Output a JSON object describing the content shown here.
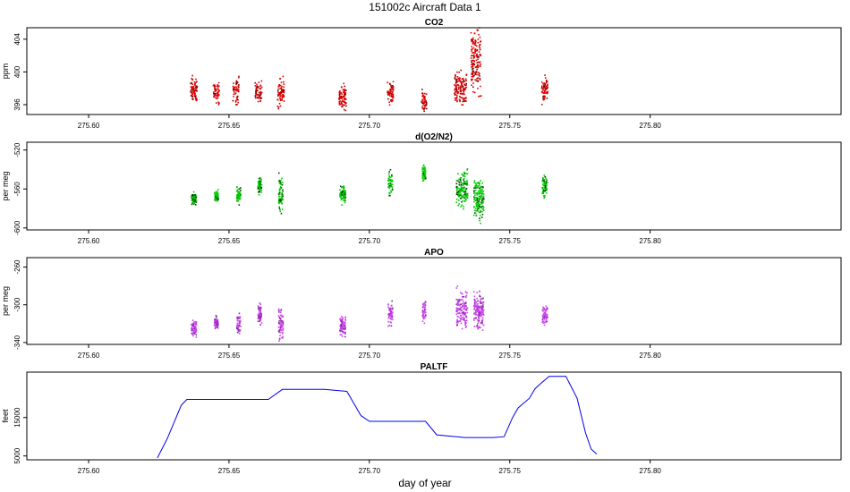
{
  "title": "151002c   Aircraft Data 1",
  "xlabel": "day of year",
  "chart_data": [
    {
      "type": "scatter",
      "title": "CO2",
      "ylabel": "ppm",
      "color": "#e00000",
      "xlim": [
        275.578,
        275.868
      ],
      "ylim": [
        394.8,
        405.4
      ],
      "x_ticks": [
        "275.60",
        "275.65",
        "275.70",
        "275.75",
        "275.80"
      ],
      "y_ticks": [
        "396",
        "400",
        "404"
      ],
      "clusters": [
        {
          "x": 275.6375,
          "y": 397.8
        },
        {
          "x": 275.6455,
          "y": 397.5
        },
        {
          "x": 275.6525,
          "y": 397.8
        },
        {
          "x": 275.6605,
          "y": 397.5
        },
        {
          "x": 275.6685,
          "y": 397.5
        },
        {
          "x": 275.6905,
          "y": 396.9
        },
        {
          "x": 275.7075,
          "y": 397.3
        },
        {
          "x": 275.7195,
          "y": 396.3
        },
        {
          "x": 275.7325,
          "y": 398.0
        },
        {
          "x": 275.738,
          "y": 401.5
        },
        {
          "x": 275.7625,
          "y": 397.8
        }
      ]
    },
    {
      "type": "scatter",
      "title": "d(O2/N2)",
      "ylabel": "per meg",
      "color": "#00cc00",
      "xlim": [
        275.578,
        275.868
      ],
      "ylim": [
        -602,
        -512
      ],
      "x_ticks": [
        "275.60",
        "275.65",
        "275.70",
        "275.75",
        "275.80"
      ],
      "y_ticks": [
        "-600",
        "-560",
        "-520"
      ],
      "clusters": [
        {
          "x": 275.6375,
          "y": -570
        },
        {
          "x": 275.6455,
          "y": -568
        },
        {
          "x": 275.6535,
          "y": -566
        },
        {
          "x": 275.661,
          "y": -556
        },
        {
          "x": 275.6685,
          "y": -567
        },
        {
          "x": 275.6905,
          "y": -565
        },
        {
          "x": 275.7075,
          "y": -556
        },
        {
          "x": 275.7195,
          "y": -544
        },
        {
          "x": 275.733,
          "y": -560
        },
        {
          "x": 275.739,
          "y": -570
        },
        {
          "x": 275.7625,
          "y": -557
        }
      ]
    },
    {
      "type": "scatter",
      "title": "APO",
      "ylabel": "per meg",
      "color": "#cc44ee",
      "xlim": [
        275.578,
        275.868
      ],
      "ylim": [
        -342,
        -250
      ],
      "x_ticks": [
        "275.60",
        "275.65",
        "275.70",
        "275.75",
        "275.80"
      ],
      "y_ticks": [
        "-340",
        "-300",
        "-260"
      ],
      "clusters": [
        {
          "x": 275.6375,
          "y": -325
        },
        {
          "x": 275.6455,
          "y": -320
        },
        {
          "x": 275.6535,
          "y": -320
        },
        {
          "x": 275.661,
          "y": -310
        },
        {
          "x": 275.6685,
          "y": -320
        },
        {
          "x": 275.6905,
          "y": -323
        },
        {
          "x": 275.7075,
          "y": -310
        },
        {
          "x": 275.7195,
          "y": -307
        },
        {
          "x": 275.733,
          "y": -305
        },
        {
          "x": 275.739,
          "y": -305
        },
        {
          "x": 275.7625,
          "y": -310
        }
      ]
    },
    {
      "type": "line",
      "title": "PALTF",
      "ylabel": "feet",
      "color": "#0000ee",
      "xlim": [
        275.578,
        275.868
      ],
      "ylim": [
        4000,
        26800
      ],
      "x_ticks": [
        "275.60",
        "275.65",
        "275.70",
        "275.75",
        "275.80"
      ],
      "y_ticks": [
        "5000",
        "15000"
      ],
      "x": [
        275.6245,
        275.628,
        275.633,
        275.635,
        275.646,
        275.659,
        275.6615,
        275.664,
        275.669,
        275.676,
        275.684,
        275.692,
        275.697,
        275.7,
        275.712,
        275.72,
        275.724,
        275.734,
        275.744,
        275.748,
        275.751,
        275.753,
        275.757,
        275.759,
        275.761,
        275.764,
        275.766,
        275.77,
        275.774,
        275.777,
        275.779,
        275.781
      ],
      "y": [
        4500,
        9500,
        18200,
        19700,
        19700,
        19700,
        19700,
        19700,
        22300,
        22300,
        22300,
        21800,
        15500,
        14000,
        14000,
        14000,
        10500,
        9800,
        9800,
        10000,
        15000,
        17500,
        20000,
        22500,
        23800,
        25700,
        25700,
        25700,
        20000,
        11000,
        6800,
        5500
      ]
    }
  ]
}
